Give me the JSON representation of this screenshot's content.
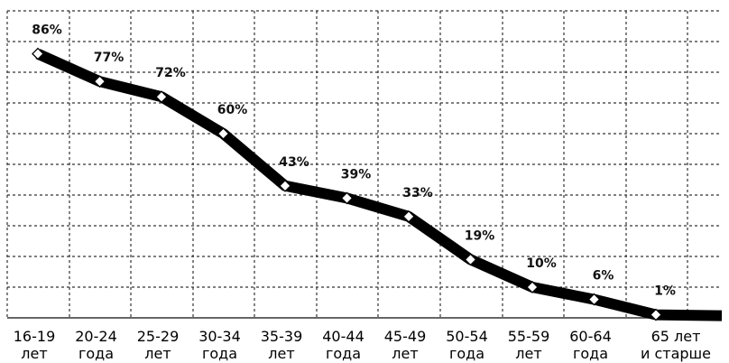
{
  "chart_data": {
    "type": "line",
    "categories": [
      [
        "16-19",
        "лет"
      ],
      [
        "20-24",
        "года"
      ],
      [
        "25-29",
        "лет"
      ],
      [
        "30-34",
        "года"
      ],
      [
        "35-39",
        "лет"
      ],
      [
        "40-44",
        "года"
      ],
      [
        "45-49",
        "лет"
      ],
      [
        "50-54",
        "года"
      ],
      [
        "55-59",
        "лет"
      ],
      [
        "60-64",
        "года"
      ],
      [
        "65 лет",
        "и старше"
      ]
    ],
    "series": [
      {
        "values": [
          86,
          77,
          72,
          60,
          43,
          39,
          33,
          19,
          10,
          6,
          1
        ],
        "data_labels": [
          "86%",
          "77%",
          "72%",
          "60%",
          "43%",
          "39%",
          "33%",
          "19%",
          "10%",
          "6%",
          "1%"
        ]
      }
    ],
    "ylim": [
      0,
      100
    ],
    "grid": true,
    "legend": "none",
    "colors": {
      "line": "#000000",
      "marker_fill": "#ffffff",
      "grid": "#333333"
    }
  }
}
